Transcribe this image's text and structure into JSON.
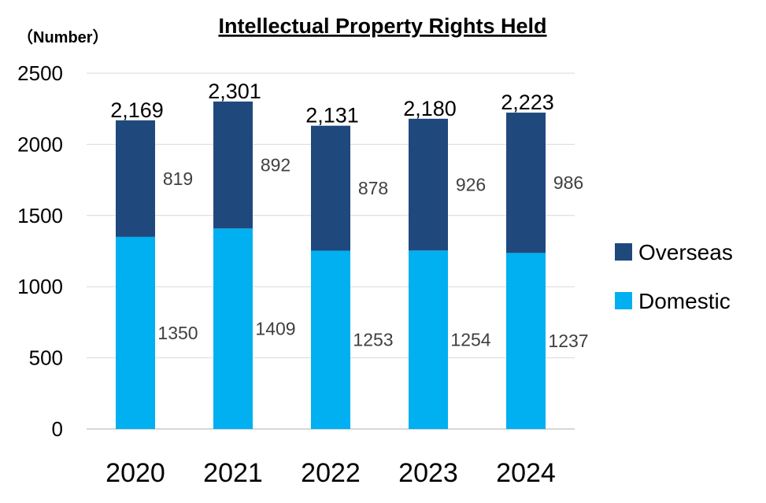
{
  "chart_data": {
    "type": "bar",
    "stacked": true,
    "title": "Intellectual Property Rights Held",
    "ylabel": "（Number）",
    "categories": [
      "2020",
      "2021",
      "2022",
      "2023",
      "2024"
    ],
    "series": [
      {
        "name": "Domestic",
        "color": "#00b0f0",
        "values": [
          1350,
          1409,
          1253,
          1254,
          1237
        ]
      },
      {
        "name": "Overseas",
        "color": "#1f497d",
        "values": [
          819,
          892,
          878,
          926,
          986
        ]
      }
    ],
    "totals": [
      "2,169",
      "2,301",
      "2,131",
      "2,180",
      "2,223"
    ],
    "ylim": [
      0,
      2500
    ],
    "yticks": [
      0,
      500,
      1000,
      1500,
      2000,
      2500
    ],
    "grid": true,
    "legend": "right",
    "legend_order": [
      "Overseas",
      "Domestic"
    ]
  }
}
